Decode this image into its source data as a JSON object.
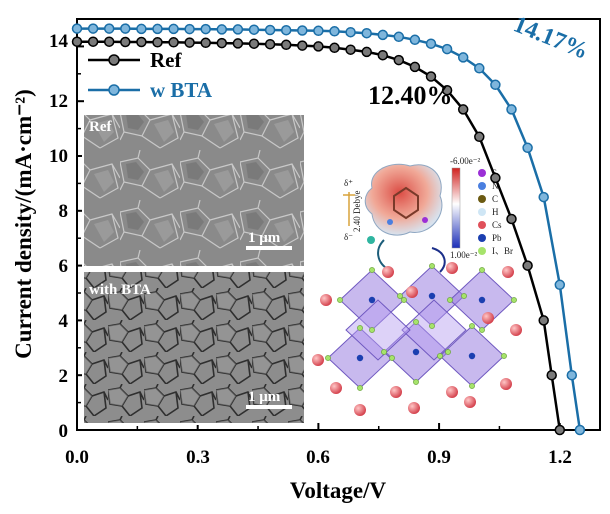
{
  "chart_data": {
    "type": "line",
    "xlabel": "Voltage/V",
    "ylabel": "Current density/(mA·cm⁻²)",
    "xlim": [
      0,
      1.3
    ],
    "ylim": [
      0,
      15
    ],
    "xticks": [
      "0.0",
      "0.3",
      "0.6",
      "0.9",
      "1.2"
    ],
    "yticks": [
      "0",
      "2",
      "4",
      "6",
      "8",
      "10",
      "12",
      "14"
    ],
    "series": [
      {
        "name": "Ref",
        "color": "#000000",
        "marker_fill": "#7a7a7a",
        "pce": "12.40%",
        "x": [
          0.0,
          0.04,
          0.08,
          0.12,
          0.16,
          0.2,
          0.24,
          0.28,
          0.32,
          0.36,
          0.4,
          0.44,
          0.48,
          0.52,
          0.56,
          0.6,
          0.64,
          0.68,
          0.72,
          0.76,
          0.8,
          0.84,
          0.88,
          0.92,
          0.96,
          1.0,
          1.04,
          1.08,
          1.12,
          1.16,
          1.18,
          1.2
        ],
        "y": [
          14.17,
          14.17,
          14.17,
          14.16,
          14.16,
          14.15,
          14.15,
          14.14,
          14.13,
          14.12,
          14.11,
          14.1,
          14.08,
          14.06,
          14.03,
          14.0,
          13.95,
          13.88,
          13.8,
          13.68,
          13.5,
          13.25,
          12.9,
          12.4,
          11.7,
          10.7,
          9.2,
          7.7,
          6.0,
          4.0,
          2.0,
          0.0
        ]
      },
      {
        "name": "w BTA",
        "color": "#1a6ea7",
        "marker_fill": "#7fb6dc",
        "pce": "14.17%",
        "x": [
          0.0,
          0.04,
          0.08,
          0.12,
          0.16,
          0.2,
          0.24,
          0.28,
          0.32,
          0.36,
          0.4,
          0.44,
          0.48,
          0.52,
          0.56,
          0.6,
          0.64,
          0.68,
          0.72,
          0.76,
          0.8,
          0.84,
          0.88,
          0.92,
          0.96,
          1.0,
          1.04,
          1.08,
          1.12,
          1.16,
          1.2,
          1.23,
          1.25
        ],
        "y": [
          14.65,
          14.65,
          14.65,
          14.65,
          14.64,
          14.64,
          14.64,
          14.63,
          14.63,
          14.62,
          14.62,
          14.61,
          14.6,
          14.59,
          14.58,
          14.57,
          14.55,
          14.52,
          14.48,
          14.42,
          14.35,
          14.24,
          14.1,
          13.9,
          13.6,
          13.2,
          12.6,
          11.7,
          10.3,
          8.5,
          5.3,
          2.0,
          0.0
        ]
      }
    ],
    "insets": {
      "sem_top_label": "Ref",
      "sem_bottom_label": "with BTA",
      "scale_bar": "1 μm",
      "dipole_label": "2.40 Debye",
      "esp_max": "-6.00e⁻²",
      "esp_min": "1.00e⁻²",
      "delta_plus": "δ⁺",
      "delta_minus": "δ⁻",
      "element_legend": [
        {
          "name": "S",
          "color": "#9b2fd6"
        },
        {
          "name": "N",
          "color": "#4a7fe0"
        },
        {
          "name": "C",
          "color": "#6b5a12"
        },
        {
          "name": "H",
          "color": "#cfe6f5"
        },
        {
          "name": "Cs",
          "color": "#e0505a"
        },
        {
          "name": "Pb",
          "color": "#1b3fb0"
        },
        {
          "name": "I、Br",
          "color": "#a6e36b"
        }
      ]
    }
  }
}
